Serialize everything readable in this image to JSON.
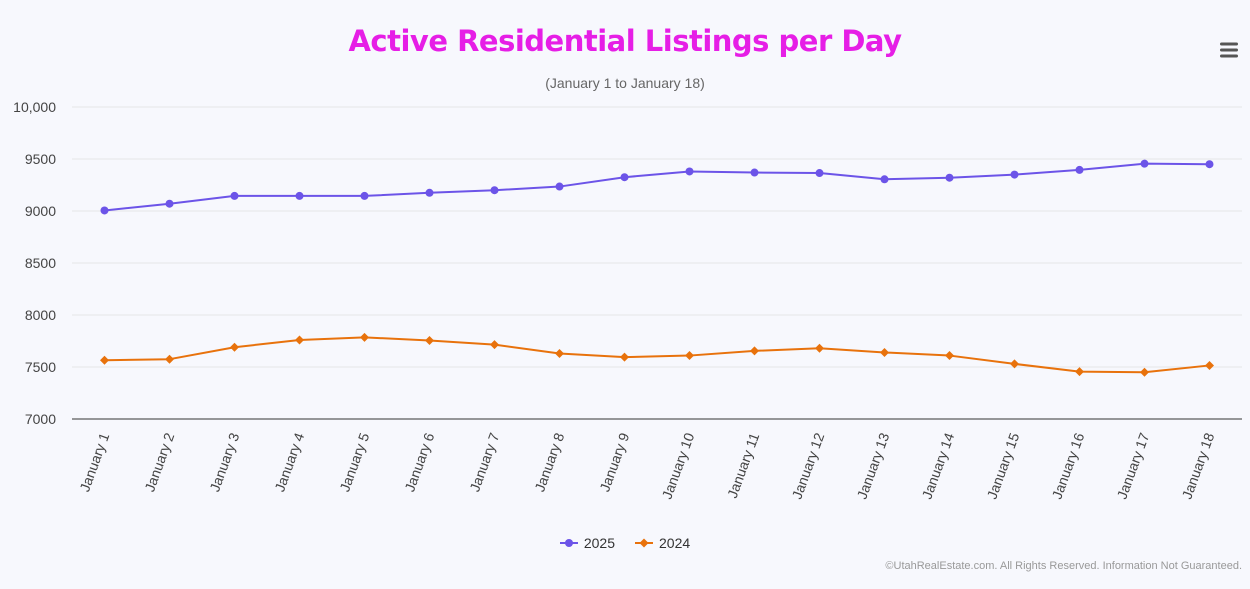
{
  "chart_data": {
    "type": "line",
    "title": "Active Residential Listings per Day",
    "subtitle": "(January 1 to January 18)",
    "xlabel": "",
    "ylabel": "",
    "ylim": [
      7000,
      10000
    ],
    "yticks": [
      7000,
      7500,
      8000,
      8500,
      9000,
      9500,
      10000
    ],
    "ytick_labels": [
      "7000",
      "7500",
      "8000",
      "8500",
      "9000",
      "9500",
      "10,000"
    ],
    "grid": true,
    "legend_placement": "bottom-center",
    "categories": [
      "January 1",
      "January 2",
      "January 3",
      "January 4",
      "January 5",
      "January 6",
      "January 7",
      "January 8",
      "January 9",
      "January 10",
      "January 11",
      "January 12",
      "January 13",
      "January 14",
      "January 15",
      "January 16",
      "January 17",
      "January 18"
    ],
    "series": [
      {
        "name": "2025",
        "color": "#6c54e8",
        "marker": "circle",
        "values": [
          9005,
          9070,
          9145,
          9145,
          9145,
          9175,
          9200,
          9235,
          9325,
          9380,
          9370,
          9365,
          9305,
          9320,
          9350,
          9395,
          9455,
          9450
        ]
      },
      {
        "name": "2024",
        "color": "#e8720c",
        "marker": "diamond",
        "values": [
          7565,
          7575,
          7690,
          7760,
          7785,
          7755,
          7715,
          7630,
          7595,
          7610,
          7655,
          7680,
          7640,
          7610,
          7530,
          7455,
          7450,
          7515
        ]
      }
    ]
  },
  "colors": {
    "title": "#e61ee6",
    "axis_line": "#333333",
    "grid": "#e6e6e6",
    "label": "#444444"
  },
  "menu": {
    "icon": "hamburger-menu-icon"
  },
  "credits": "©UtahRealEstate.com. All Rights Reserved. Information Not Guaranteed."
}
